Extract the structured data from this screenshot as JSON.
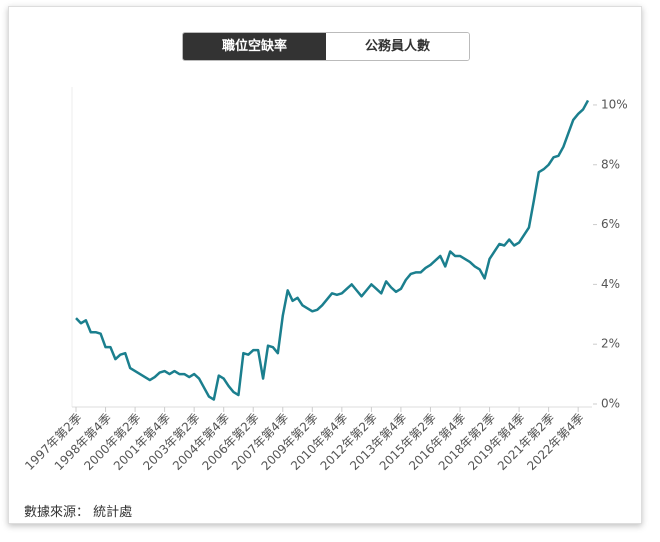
{
  "tabs": [
    "職位空缺率",
    "公務員人數"
  ],
  "source": "數據來源：  統計處",
  "chart_data": {
    "type": "line",
    "categories": [
      "1997年第2季",
      null,
      null,
      null,
      null,
      null,
      "1998年第4季",
      null,
      null,
      null,
      null,
      null,
      "2000年第2季",
      null,
      null,
      null,
      null,
      null,
      "2001年第4季",
      null,
      null,
      null,
      null,
      null,
      "2003年第2季",
      null,
      null,
      null,
      null,
      null,
      "2004年第4季",
      null,
      null,
      null,
      null,
      null,
      "2006年第2季",
      null,
      null,
      null,
      null,
      null,
      "2007年第4季",
      null,
      null,
      null,
      null,
      null,
      "2009年第2季",
      null,
      null,
      null,
      null,
      null,
      "2010年第4季",
      null,
      null,
      null,
      null,
      null,
      "2012年第2季",
      null,
      null,
      null,
      null,
      null,
      "2013年第4季",
      null,
      null,
      null,
      null,
      null,
      "2015年第2季",
      null,
      null,
      null,
      null,
      null,
      "2016年第4季",
      null,
      null,
      null,
      null,
      null,
      "2018年第2季",
      null,
      null,
      null,
      null,
      null,
      "2019年第4季",
      null,
      null,
      null,
      null,
      null,
      "2021年第2季",
      null,
      null,
      null,
      null,
      null,
      "2022年第4季",
      null,
      null
    ],
    "values": [
      2.87,
      2.7,
      2.8,
      2.4,
      2.4,
      2.35,
      1.9,
      1.9,
      1.5,
      1.65,
      1.7,
      1.2,
      1.1,
      1.0,
      0.9,
      0.8,
      0.9,
      1.05,
      1.1,
      1.0,
      1.1,
      1.0,
      1.0,
      0.9,
      1.0,
      0.85,
      0.55,
      0.25,
      0.15,
      0.95,
      0.85,
      0.6,
      0.4,
      0.3,
      1.7,
      1.65,
      1.8,
      1.8,
      0.85,
      1.95,
      1.9,
      1.7,
      2.95,
      3.8,
      3.45,
      3.55,
      3.3,
      3.2,
      3.1,
      3.15,
      3.3,
      3.5,
      3.7,
      3.65,
      3.7,
      3.85,
      4.0,
      3.8,
      3.6,
      3.8,
      4.0,
      3.85,
      3.7,
      4.1,
      3.9,
      3.75,
      3.85,
      4.15,
      4.35,
      4.4,
      4.4,
      4.55,
      4.65,
      4.8,
      4.95,
      4.6,
      5.1,
      4.95,
      4.95,
      4.85,
      4.75,
      4.6,
      4.5,
      4.2,
      4.85,
      5.1,
      5.35,
      5.3,
      5.5,
      5.3,
      5.4,
      5.65,
      5.9,
      6.8,
      7.75,
      7.85,
      8.0,
      8.25,
      8.3,
      8.6,
      9.05,
      9.5,
      9.7,
      9.85,
      10.15
    ],
    "color": "#1b7f8e",
    "ylim": [
      0,
      10.6
    ],
    "yticks": [
      {
        "value": 0,
        "label": "0%"
      },
      {
        "value": 2,
        "label": "2%"
      },
      {
        "value": 4,
        "label": "4%"
      },
      {
        "value": 6,
        "label": "6%"
      },
      {
        "value": 8,
        "label": "8%"
      },
      {
        "value": 10,
        "label": "10%"
      }
    ]
  }
}
